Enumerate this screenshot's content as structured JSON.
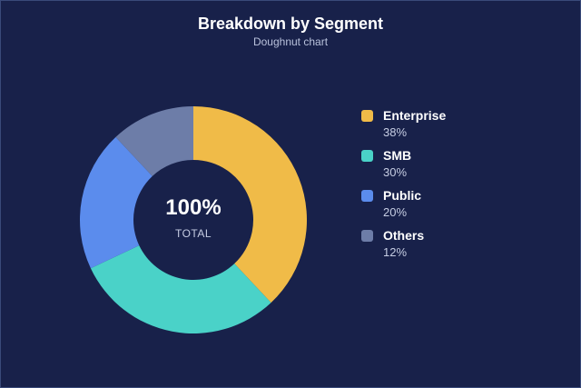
{
  "chart_data": {
    "type": "pie",
    "title": "Breakdown by Segment",
    "subtitle": "Doughnut chart",
    "center": {
      "value": "100%",
      "label": "TOTAL"
    },
    "legend_position": "right",
    "series": [
      {
        "name": "Enterprise",
        "value": 38,
        "label": "38%",
        "color": "#f0bb48"
      },
      {
        "name": "SMB",
        "value": 30,
        "label": "30%",
        "color": "#4ad2c8"
      },
      {
        "name": "Public",
        "value": 20,
        "label": "20%",
        "color": "#5b8ced"
      },
      {
        "name": "Others",
        "value": 12,
        "label": "12%",
        "color": "#6d7da8"
      }
    ]
  }
}
